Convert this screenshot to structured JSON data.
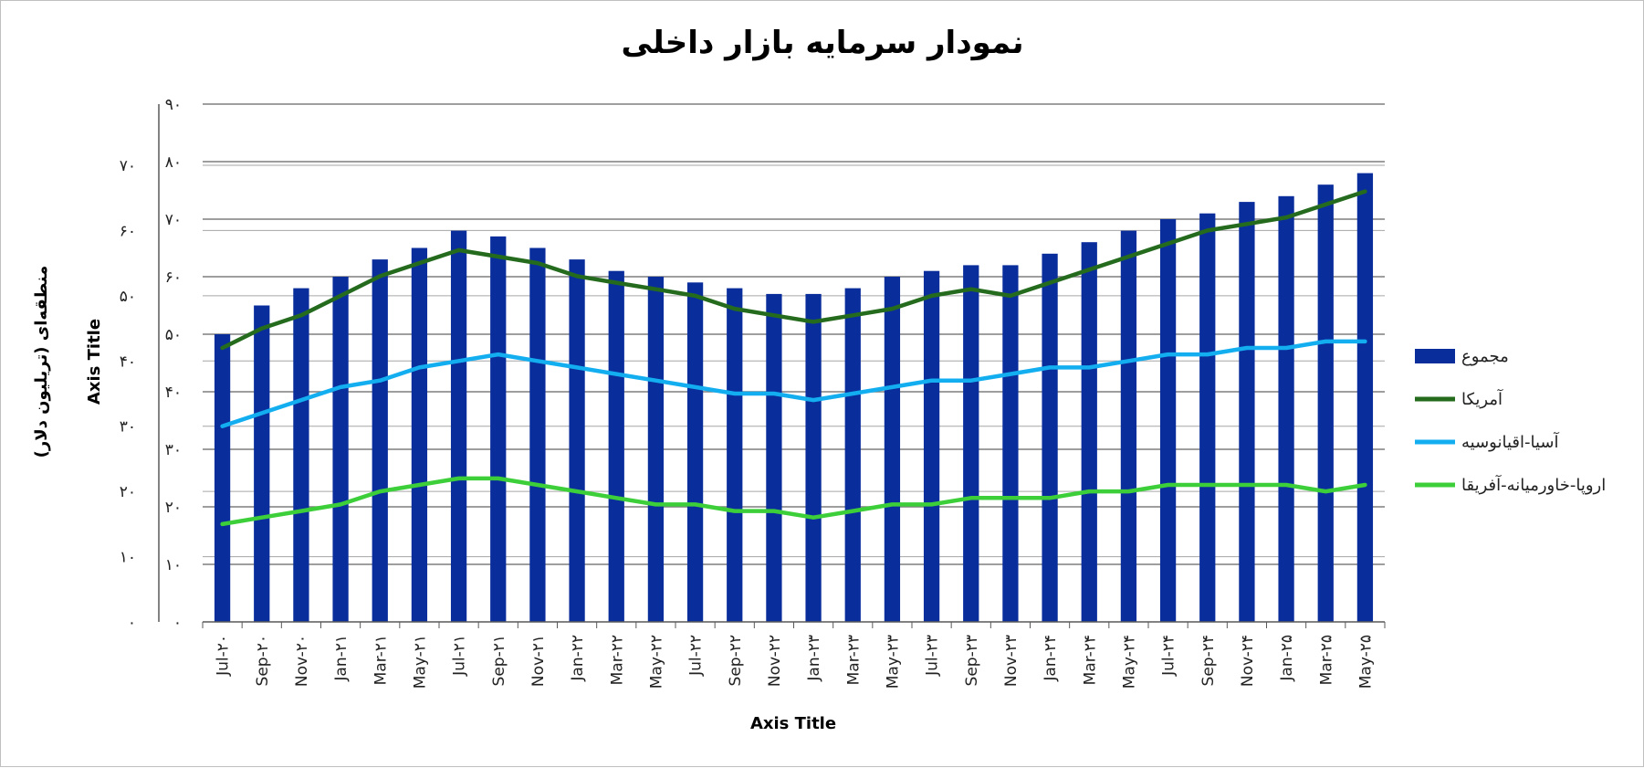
{
  "chart_data": {
    "type": "bar",
    "title": "نمودار سرمایه بازار داخلی",
    "xlabel": "Axis Title",
    "ylabel": "Axis Title",
    "y2label": "منطقه‌ای (تریلیون دلار)",
    "categories": [
      "Jul-۲۰",
      "Sep-۲۰",
      "Nov-۲۰",
      "Jan-۲۱",
      "Mar-۲۱",
      "May-۲۱",
      "Jul-۲۱",
      "Sep-۲۱",
      "Nov-۲۱",
      "Jan-۲۲",
      "Mar-۲۲",
      "May-۲۲",
      "Jul-۲۲",
      "Sep-۲۲",
      "Nov-۲۲",
      "Jan-۲۳",
      "Mar-۲۳",
      "May-۲۳",
      "Jul-۲۳",
      "Sep-۲۳",
      "Nov-۲۳",
      "Jan-۲۴",
      "Mar-۲۴",
      "May-۲۴",
      "Jul-۲۴",
      "Sep-۲۴",
      "Nov-۲۴",
      "Jan-۲۵",
      "Mar-۲۵",
      "May-۲۵"
    ],
    "ylim": [
      0,
      90
    ],
    "yticks": [
      0,
      10,
      20,
      30,
      40,
      50,
      60,
      70,
      80,
      90
    ],
    "ytick_labels": [
      "۰",
      "۱۰",
      "۲۰",
      "۳۰",
      "۴۰",
      "۵۰",
      "۶۰",
      "۷۰",
      "۸۰",
      "۹۰"
    ],
    "y2lim": [
      0,
      70
    ],
    "y2ticks": [
      0,
      10,
      20,
      30,
      40,
      50,
      60,
      70
    ],
    "y2tick_labels": [
      "۰",
      "۱۰",
      "۲۰",
      "۳۰",
      "۴۰",
      "۵۰",
      "۶۰",
      "۷۰"
    ],
    "grid": true,
    "legend_position": "right",
    "series": [
      {
        "name": "مجموع",
        "type": "bar",
        "axis": "left",
        "color": "#0a2d9c",
        "values": [
          50,
          55,
          58,
          60,
          63,
          65,
          68,
          67,
          65,
          63,
          61,
          60,
          59,
          58,
          57,
          57,
          58,
          60,
          61,
          62,
          62,
          64,
          66,
          68,
          70,
          71,
          73,
          74,
          76,
          78
        ]
      },
      {
        "name": "آمریکا",
        "type": "line",
        "axis": "right",
        "color": "#256b1e",
        "values": [
          42,
          45,
          47,
          50,
          53,
          55,
          57,
          56,
          55,
          53,
          52,
          51,
          50,
          48,
          47,
          46,
          47,
          48,
          50,
          51,
          50,
          52,
          54,
          56,
          58,
          60,
          61,
          62,
          64,
          66
        ]
      },
      {
        "name": "آسیا-اقیانوسیه",
        "type": "line",
        "axis": "right",
        "color": "#12aef0",
        "values": [
          30,
          32,
          34,
          36,
          37,
          39,
          40,
          41,
          40,
          39,
          38,
          37,
          36,
          35,
          35,
          34,
          35,
          36,
          37,
          37,
          38,
          39,
          39,
          40,
          41,
          41,
          42,
          42,
          43,
          43
        ]
      },
      {
        "name": "اروپا-خاورمیانه-آفریقا",
        "type": "line",
        "axis": "right",
        "color": "#3dcf3a",
        "values": [
          15,
          16,
          17,
          18,
          20,
          21,
          22,
          22,
          21,
          20,
          19,
          18,
          18,
          17,
          17,
          16,
          17,
          18,
          18,
          19,
          19,
          19,
          20,
          20,
          21,
          21,
          21,
          21,
          20,
          21
        ]
      }
    ]
  }
}
